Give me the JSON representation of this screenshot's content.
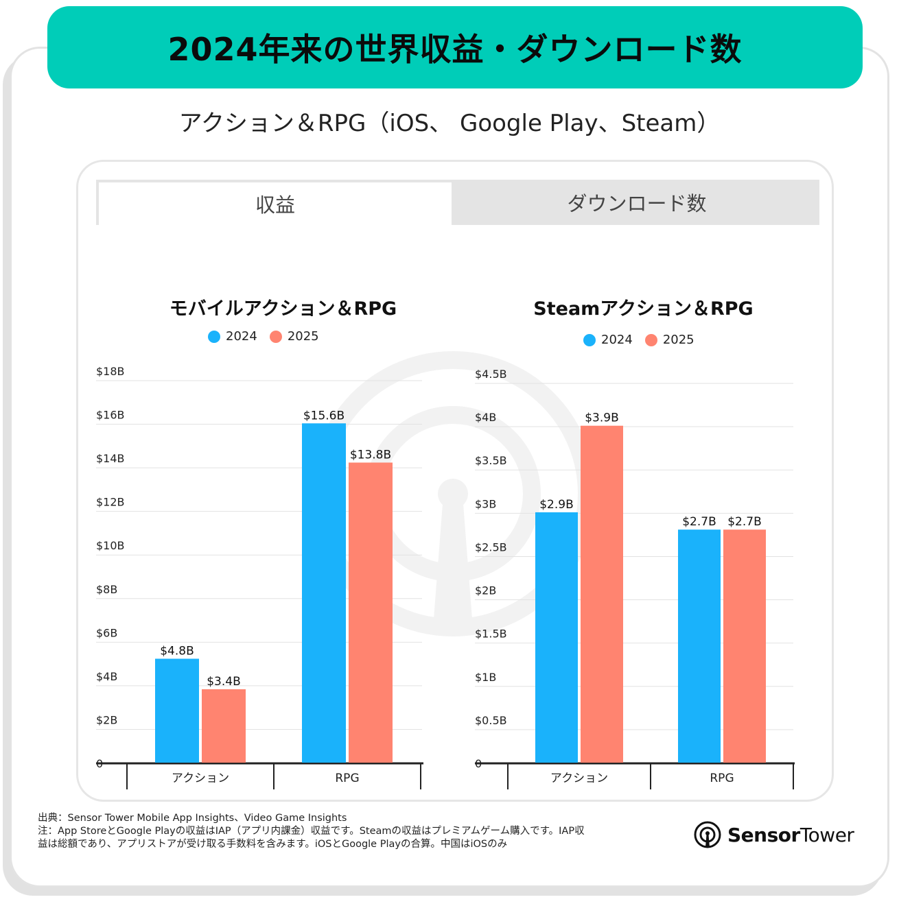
{
  "header": {
    "title": "2024年来の世界収益・ダウンロード数",
    "subtitle": "アクション＆RPG（iOS、 Google Play、Steam）"
  },
  "tabs": [
    {
      "label": "収益",
      "active": true
    },
    {
      "label": "ダウンロード数",
      "active": false
    }
  ],
  "colors": {
    "banner": "#00cdb8",
    "series_2024": "#1ab2fb",
    "series_2025": "#ff8470"
  },
  "chart_data": [
    {
      "type": "bar",
      "title": "モバイルアクション＆RPG",
      "categories": [
        "アクション",
        "RPG"
      ],
      "series": [
        {
          "name": "2024",
          "values": [
            4.8,
            15.6
          ],
          "labels": [
            "$4.8B",
            "$15.6B"
          ]
        },
        {
          "name": "2025",
          "values": [
            3.4,
            13.8
          ],
          "labels": [
            "$3.4B",
            "$13.8B"
          ]
        }
      ],
      "ylim": [
        0,
        18
      ],
      "yticks": [
        0,
        2,
        4,
        6,
        8,
        10,
        12,
        14,
        16,
        18
      ],
      "ytick_labels": [
        "0",
        "$2B",
        "$4B",
        "$6B",
        "$8B",
        "$10B",
        "$12B",
        "$14B",
        "$16B",
        "$18B"
      ],
      "xlabel": "",
      "ylabel": "",
      "grid": true,
      "legend": "top-center"
    },
    {
      "type": "bar",
      "title": "Steamアクション＆RPG",
      "categories": [
        "アクション",
        "RPG"
      ],
      "series": [
        {
          "name": "2024",
          "values": [
            2.9,
            2.7
          ],
          "labels": [
            "$2.9B",
            "$2.7B"
          ]
        },
        {
          "name": "2025",
          "values": [
            3.9,
            2.7
          ],
          "labels": [
            "$3.9B",
            "$2.7B"
          ]
        }
      ],
      "ylim": [
        0,
        4.5
      ],
      "yticks": [
        0,
        0.5,
        1,
        1.5,
        2,
        2.5,
        3,
        3.5,
        4,
        4.5
      ],
      "ytick_labels": [
        "0",
        "$0.5B",
        "$1B",
        "$1.5B",
        "$2B",
        "$2.5B",
        "$3B",
        "$3.5B",
        "$4B",
        "$4.5B"
      ],
      "xlabel": "",
      "ylabel": "",
      "grid": true,
      "legend": "top-center"
    }
  ],
  "footnote": {
    "line1": "出典：Sensor Tower Mobile App Insights、Video Game Insights",
    "line2": "注：App StoreとGoogle Playの収益はIAP（アプリ内課金）収益です。Steamの収益はプレミアムゲーム購入です。IAP収",
    "line3": "益は総額であり、アプリストアが受け取る手数料を含みます。iOSとGoogle Playの合算。中国はiOSのみ"
  },
  "logo": {
    "bold": "Sensor",
    "regular": "Tower",
    "icon": "sensor-tower-logo-icon"
  }
}
